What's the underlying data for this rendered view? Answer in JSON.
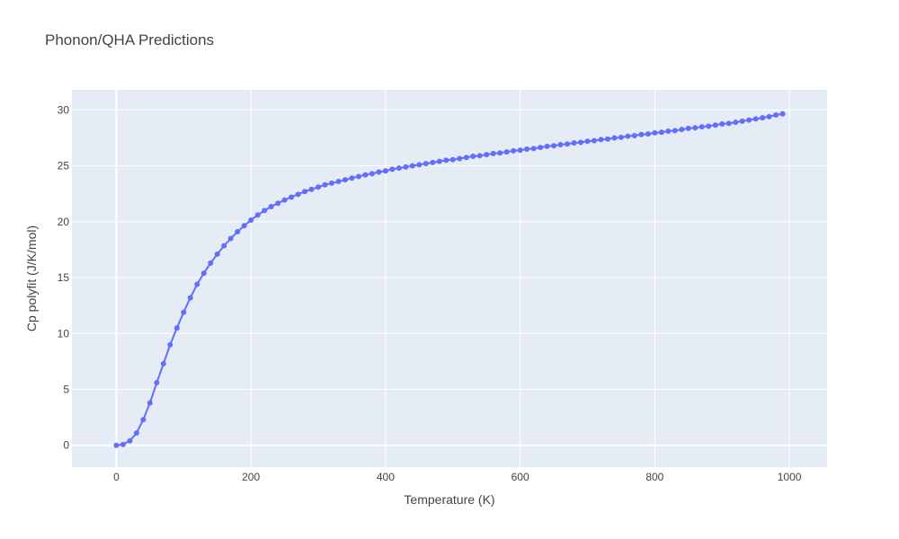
{
  "chart_data": {
    "type": "line",
    "title": "Phonon/QHA Predictions",
    "xlabel": "Temperature (K)",
    "ylabel": "Cp polyfit (J/K/mol)",
    "xlim": [
      -66,
      1056
    ],
    "ylim": [
      -1.95,
      31.8
    ],
    "xticks": [
      0,
      200,
      400,
      600,
      800,
      1000
    ],
    "yticks": [
      0,
      5,
      10,
      15,
      20,
      25,
      30
    ],
    "grid": true,
    "legend": "none",
    "colors": {
      "plot_bg": "#e5ecf6",
      "grid": "#ffffff",
      "series": "#636efa",
      "text": "#444444"
    },
    "series": [
      {
        "x": [
          0,
          10,
          20,
          30,
          40,
          50,
          60,
          70,
          80,
          90,
          100,
          110,
          120,
          130,
          140,
          150,
          160,
          170,
          180,
          190,
          200,
          210,
          220,
          230,
          240,
          250,
          260,
          270,
          280,
          290,
          300,
          310,
          320,
          330,
          340,
          350,
          360,
          370,
          380,
          390,
          400,
          410,
          420,
          430,
          440,
          450,
          460,
          470,
          480,
          490,
          500,
          510,
          520,
          530,
          540,
          550,
          560,
          570,
          580,
          590,
          600,
          610,
          620,
          630,
          640,
          650,
          660,
          670,
          680,
          690,
          700,
          710,
          720,
          730,
          740,
          750,
          760,
          770,
          780,
          790,
          800,
          810,
          820,
          830,
          840,
          850,
          860,
          870,
          880,
          890,
          900,
          910,
          920,
          930,
          940,
          950,
          960,
          970,
          980,
          990
        ],
        "y": [
          0,
          0.08,
          0.4,
          1.1,
          2.3,
          3.8,
          5.6,
          7.3,
          9.0,
          10.5,
          11.9,
          13.2,
          14.4,
          15.4,
          16.3,
          17.1,
          17.85,
          18.5,
          19.1,
          19.65,
          20.15,
          20.6,
          21.0,
          21.35,
          21.65,
          21.95,
          22.2,
          22.45,
          22.7,
          22.9,
          23.1,
          23.3,
          23.45,
          23.6,
          23.75,
          23.9,
          24.05,
          24.2,
          24.3,
          24.45,
          24.55,
          24.7,
          24.8,
          24.9,
          25.0,
          25.1,
          25.2,
          25.3,
          25.4,
          25.5,
          25.55,
          25.65,
          25.75,
          25.85,
          25.9,
          26.0,
          26.1,
          26.15,
          26.25,
          26.35,
          26.4,
          26.5,
          26.55,
          26.65,
          26.75,
          26.8,
          26.9,
          26.95,
          27.05,
          27.1,
          27.2,
          27.25,
          27.35,
          27.4,
          27.5,
          27.55,
          27.65,
          27.7,
          27.8,
          27.85,
          27.95,
          28.0,
          28.1,
          28.15,
          28.25,
          28.35,
          28.4,
          28.5,
          28.55,
          28.65,
          28.75,
          28.8,
          28.9,
          29.0,
          29.1,
          29.2,
          29.3,
          29.4,
          29.55,
          29.65
        ]
      }
    ]
  }
}
